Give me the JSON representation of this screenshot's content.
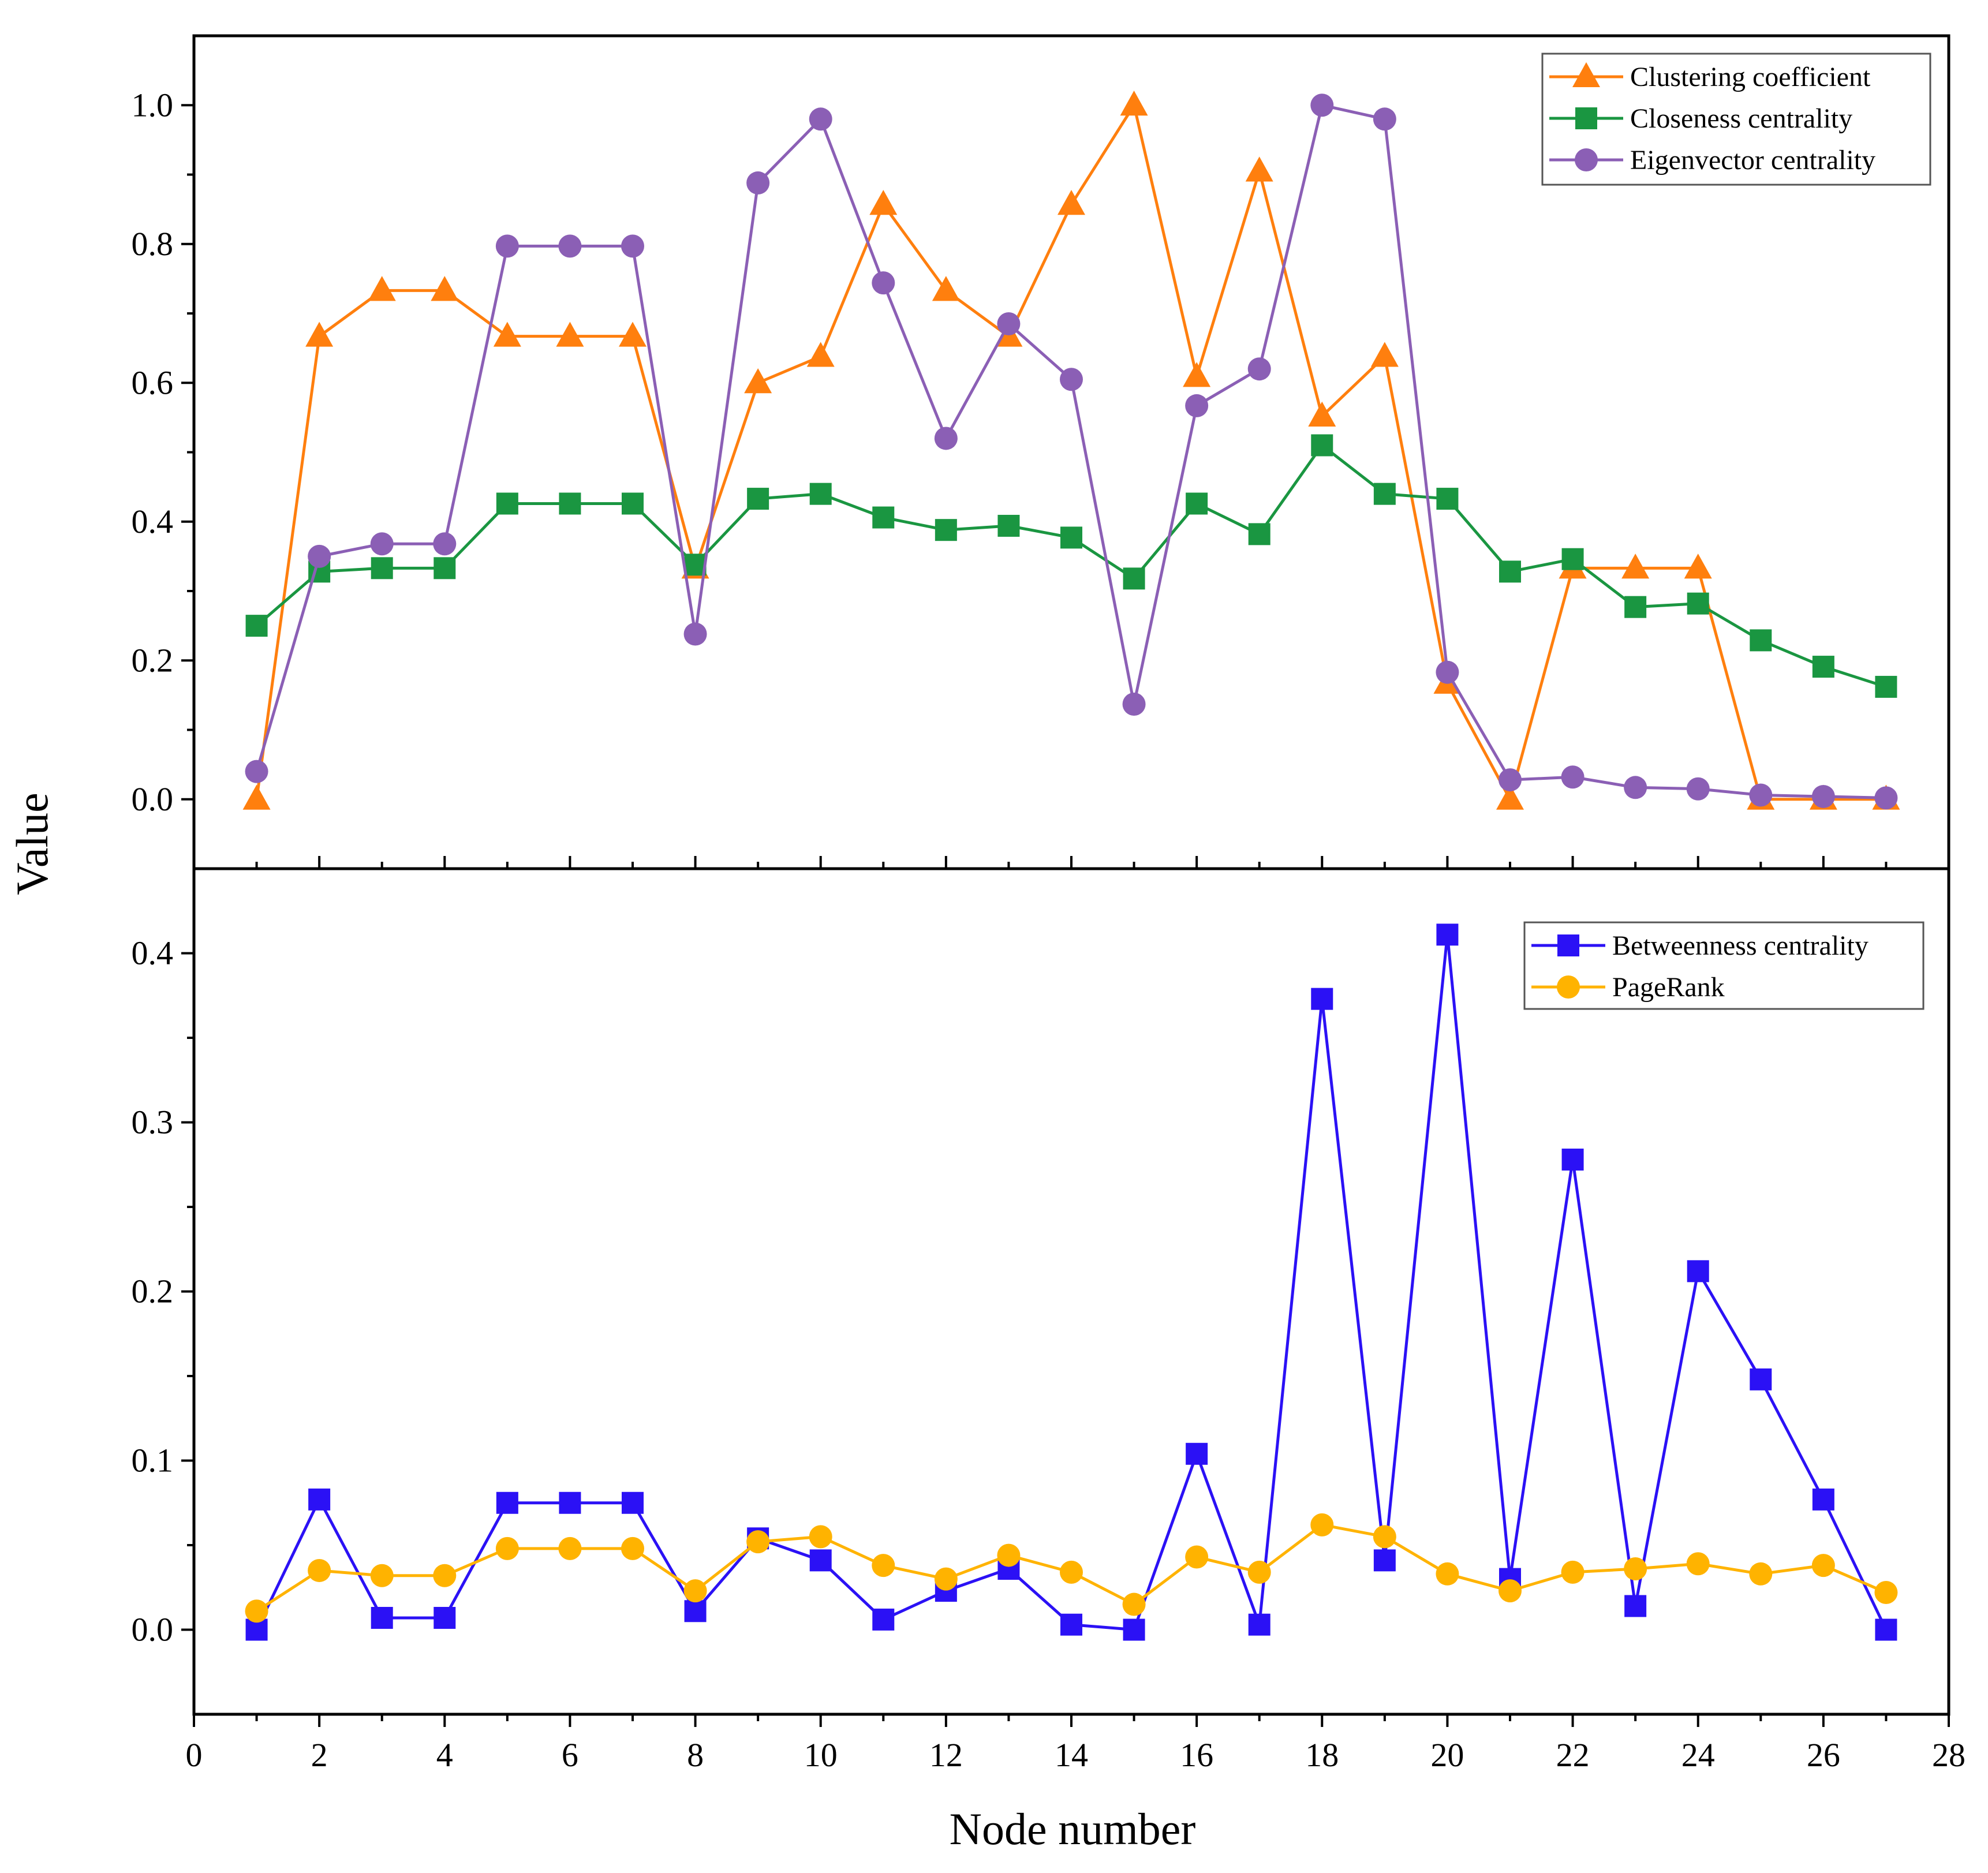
{
  "chart_data": [
    {
      "type": "line",
      "panel": "top",
      "title": "",
      "xlabel": "",
      "ylabel": "Value",
      "xlim": [
        0,
        28
      ],
      "ylim": [
        -0.1,
        1.1
      ],
      "yticks": [
        0.0,
        0.2,
        0.4,
        0.6,
        0.8,
        1.0
      ],
      "ytick_labels": [
        "0.0",
        "0.2",
        "0.4",
        "0.6",
        "0.8",
        "1.0"
      ],
      "grid": false,
      "legend_position": "top-right",
      "x": [
        1,
        2,
        3,
        4,
        5,
        6,
        7,
        8,
        9,
        10,
        11,
        12,
        13,
        14,
        15,
        16,
        17,
        18,
        19,
        20,
        21,
        22,
        23,
        24,
        25,
        26,
        27
      ],
      "series": [
        {
          "name": "Clustering coefficient",
          "color": "#FF7F0E",
          "marker": "triangle",
          "values": [
            0.0,
            0.667,
            0.733,
            0.733,
            0.667,
            0.667,
            0.667,
            0.333,
            0.6,
            0.638,
            0.857,
            0.733,
            0.667,
            0.857,
            1.0,
            0.609,
            0.905,
            0.552,
            0.638,
            0.167,
            0.0,
            0.333,
            0.333,
            0.333,
            0.0,
            0.0,
            0.0
          ]
        },
        {
          "name": "Closeness centrality",
          "color": "#1A9641",
          "marker": "square",
          "values": [
            0.25,
            0.328,
            0.333,
            0.333,
            0.426,
            0.426,
            0.426,
            0.338,
            0.433,
            0.44,
            0.406,
            0.388,
            0.394,
            0.377,
            0.318,
            0.426,
            0.382,
            0.51,
            0.44,
            0.433,
            0.328,
            0.346,
            0.277,
            0.282,
            0.229,
            0.191,
            0.162
          ]
        },
        {
          "name": "Eigenvector centrality",
          "color": "#8B5FB5",
          "marker": "circle",
          "values": [
            0.04,
            0.35,
            0.368,
            0.368,
            0.797,
            0.797,
            0.797,
            0.238,
            0.888,
            0.98,
            0.744,
            0.52,
            0.685,
            0.605,
            0.137,
            0.567,
            0.62,
            1.0,
            0.98,
            0.183,
            0.028,
            0.032,
            0.017,
            0.015,
            0.006,
            0.004,
            0.002
          ]
        }
      ]
    },
    {
      "type": "line",
      "panel": "bottom",
      "title": "",
      "xlabel": "Node number",
      "ylabel": "Value",
      "xlim": [
        0,
        28
      ],
      "ylim": [
        -0.05,
        0.45
      ],
      "yticks": [
        0.0,
        0.1,
        0.2,
        0.3,
        0.4
      ],
      "ytick_labels": [
        "0.0",
        "0.1",
        "0.2",
        "0.3",
        "0.4"
      ],
      "xticks": [
        0,
        2,
        4,
        6,
        8,
        10,
        12,
        14,
        16,
        18,
        20,
        22,
        24,
        26,
        28
      ],
      "xtick_labels": [
        "0",
        "2",
        "4",
        "6",
        "8",
        "10",
        "12",
        "14",
        "16",
        "18",
        "20",
        "22",
        "24",
        "26",
        "28"
      ],
      "grid": false,
      "legend_position": "top-right",
      "x": [
        1,
        2,
        3,
        4,
        5,
        6,
        7,
        8,
        9,
        10,
        11,
        12,
        13,
        14,
        15,
        16,
        17,
        18,
        19,
        20,
        21,
        22,
        23,
        24,
        25,
        26,
        27
      ],
      "series": [
        {
          "name": "Betweenness centrality",
          "color": "#2B11F5",
          "marker": "square",
          "values": [
            0.0,
            0.077,
            0.007,
            0.007,
            0.075,
            0.075,
            0.075,
            0.011,
            0.054,
            0.041,
            0.006,
            0.023,
            0.036,
            0.003,
            0.0,
            0.104,
            0.003,
            0.373,
            0.041,
            0.411,
            0.03,
            0.278,
            0.014,
            0.212,
            0.148,
            0.077,
            0.0
          ]
        },
        {
          "name": "PageRank",
          "color": "#FFB300",
          "marker": "circle",
          "values": [
            0.011,
            0.035,
            0.032,
            0.032,
            0.048,
            0.048,
            0.048,
            0.023,
            0.052,
            0.055,
            0.038,
            0.03,
            0.044,
            0.034,
            0.015,
            0.043,
            0.034,
            0.062,
            0.055,
            0.033,
            0.023,
            0.034,
            0.036,
            0.039,
            0.033,
            0.038,
            0.022
          ]
        }
      ]
    }
  ]
}
